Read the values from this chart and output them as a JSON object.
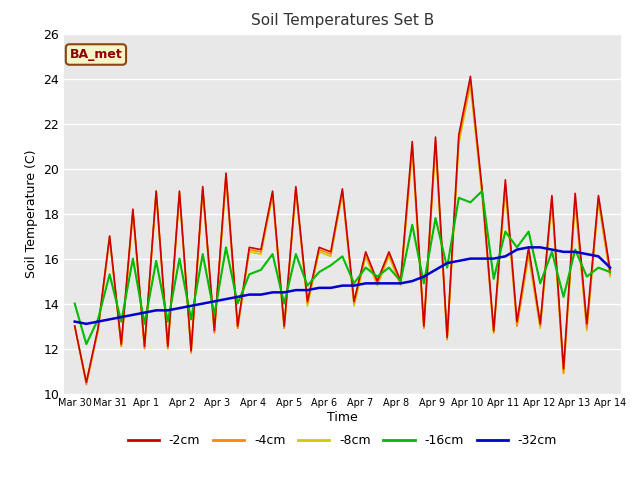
{
  "title": "Soil Temperatures Set B",
  "xlabel": "Time",
  "ylabel": "Soil Temperature (C)",
  "ylim": [
    10,
    26
  ],
  "yticks": [
    10,
    12,
    14,
    16,
    18,
    20,
    22,
    24,
    26
  ],
  "annotation": "BA_met",
  "plot_bg": "#e8e8e8",
  "legend_labels": [
    "-2cm",
    "-4cm",
    "-8cm",
    "-16cm",
    "-32cm"
  ],
  "legend_colors": [
    "#cc0000",
    "#ff8800",
    "#cccc00",
    "#00bb00",
    "#0000cc"
  ],
  "x_tick_labels": [
    "Mar 30",
    "Mar 31",
    "Apr 1",
    "Apr 2",
    "Apr 3",
    "Apr 4",
    "Apr 5",
    "Apr 6",
    "Apr 7",
    "Apr 8",
    "Apr 9",
    "Apr 10",
    "Apr 11",
    "Apr 12",
    "Apr 13",
    "Apr 14"
  ],
  "series": {
    "depth_2cm": [
      13.0,
      10.5,
      12.9,
      17.0,
      12.2,
      18.2,
      12.1,
      19.0,
      12.1,
      19.0,
      11.9,
      19.2,
      12.8,
      19.8,
      13.0,
      16.5,
      16.4,
      19.0,
      13.0,
      19.2,
      14.1,
      16.5,
      16.3,
      19.1,
      14.1,
      16.3,
      15.0,
      16.3,
      15.0,
      21.2,
      13.0,
      21.4,
      12.5,
      21.5,
      24.1,
      19.1,
      12.8,
      19.5,
      13.2,
      16.5,
      13.1,
      18.8,
      11.1,
      18.9,
      13.1,
      18.8,
      15.5
    ],
    "depth_4cm": [
      13.0,
      10.4,
      12.8,
      17.0,
      12.1,
      18.1,
      12.0,
      19.0,
      12.0,
      18.9,
      11.8,
      19.1,
      12.7,
      19.7,
      12.9,
      16.4,
      16.3,
      18.9,
      12.9,
      19.1,
      14.0,
      16.4,
      16.2,
      19.0,
      14.0,
      16.2,
      14.9,
      16.2,
      14.9,
      21.0,
      12.9,
      21.2,
      12.4,
      21.3,
      23.9,
      19.0,
      12.7,
      19.3,
      13.0,
      16.3,
      13.0,
      18.7,
      10.9,
      18.7,
      12.9,
      18.7,
      15.3
    ],
    "depth_8cm": [
      13.0,
      10.5,
      12.8,
      16.9,
      12.1,
      18.0,
      12.0,
      18.9,
      12.0,
      18.9,
      11.9,
      19.0,
      12.7,
      19.5,
      12.9,
      16.3,
      16.2,
      18.8,
      12.9,
      19.0,
      13.9,
      16.3,
      16.1,
      18.9,
      13.9,
      16.1,
      14.8,
      16.1,
      14.8,
      20.8,
      12.9,
      21.0,
      12.4,
      21.1,
      23.7,
      18.8,
      12.7,
      19.1,
      13.0,
      16.1,
      12.9,
      18.5,
      10.9,
      18.5,
      12.8,
      18.5,
      15.2
    ],
    "depth_16cm": [
      14.0,
      12.2,
      13.3,
      15.3,
      13.2,
      16.0,
      13.1,
      15.9,
      13.2,
      16.0,
      13.3,
      16.2,
      13.5,
      16.5,
      14.0,
      15.3,
      15.5,
      16.2,
      14.0,
      16.2,
      14.8,
      15.4,
      15.7,
      16.1,
      14.9,
      15.6,
      15.2,
      15.6,
      15.0,
      17.5,
      14.9,
      17.8,
      15.6,
      18.7,
      18.5,
      19.0,
      15.1,
      17.2,
      16.5,
      17.2,
      14.9,
      16.3,
      14.3,
      16.4,
      15.2,
      15.6,
      15.4
    ],
    "depth_32cm": [
      13.2,
      13.1,
      13.2,
      13.3,
      13.4,
      13.5,
      13.6,
      13.7,
      13.7,
      13.8,
      13.9,
      14.0,
      14.1,
      14.2,
      14.3,
      14.4,
      14.4,
      14.5,
      14.5,
      14.6,
      14.6,
      14.7,
      14.7,
      14.8,
      14.8,
      14.9,
      14.9,
      14.9,
      14.9,
      15.0,
      15.2,
      15.5,
      15.8,
      15.9,
      16.0,
      16.0,
      16.0,
      16.1,
      16.4,
      16.5,
      16.5,
      16.4,
      16.3,
      16.3,
      16.2,
      16.1,
      15.6
    ]
  }
}
